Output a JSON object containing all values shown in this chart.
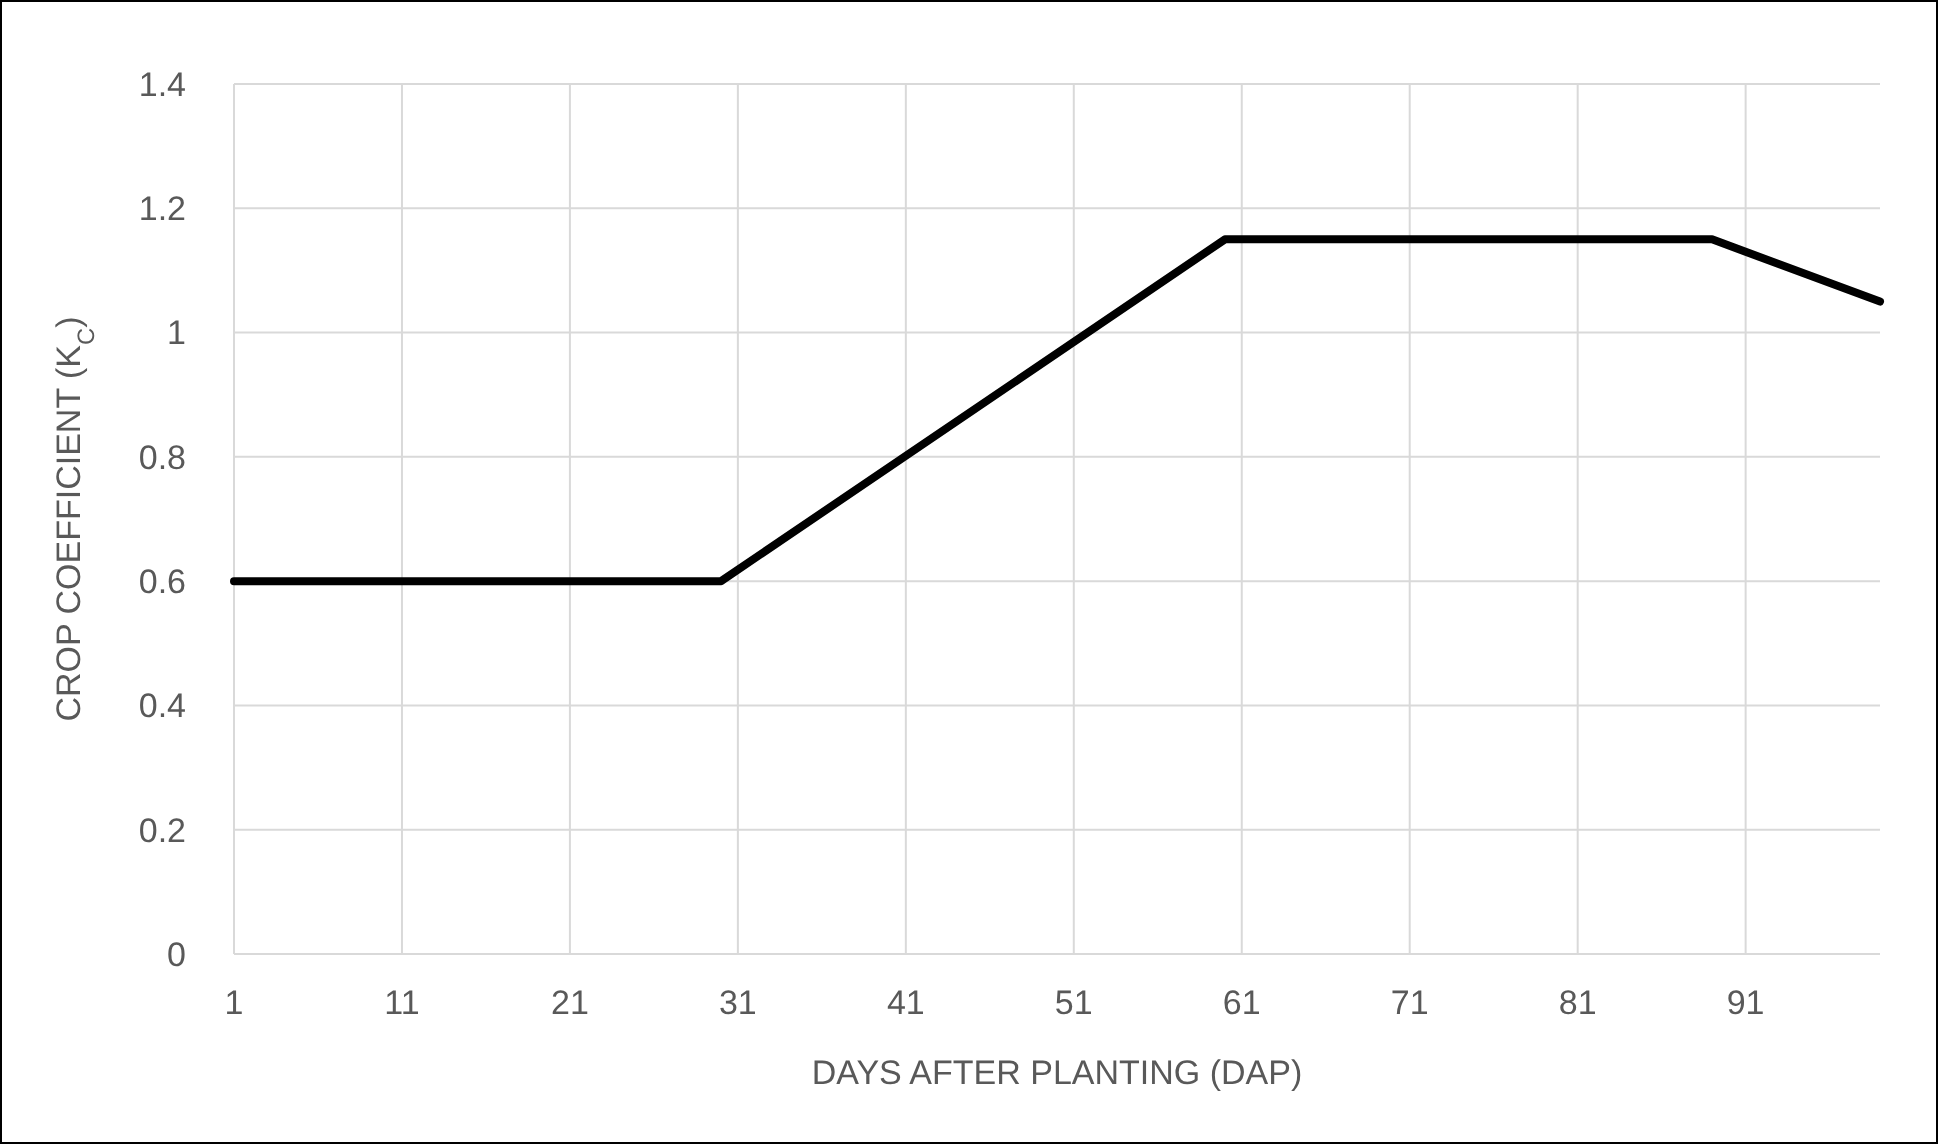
{
  "chart_data": {
    "type": "line",
    "xlabel": "DAYS AFTER PLANTING (DAP)",
    "ylabel": "CROP COEFFICIENT (K$_{C}$)",
    "x": [
      1,
      30,
      60,
      89,
      99
    ],
    "series": [
      {
        "color": "#000000",
        "values": [
          0.6,
          0.6,
          1.15,
          1.15,
          1.05
        ]
      }
    ],
    "xlim": [
      1,
      99
    ],
    "xticks": [
      1,
      11,
      21,
      31,
      41,
      51,
      61,
      71,
      81,
      91
    ],
    "ylim": [
      0,
      1.4
    ],
    "yticks": [
      0,
      0.2,
      0.4,
      0.6,
      0.8,
      1,
      1.2,
      1.4
    ],
    "grid": true,
    "marker": "none",
    "line_style": "solid"
  }
}
